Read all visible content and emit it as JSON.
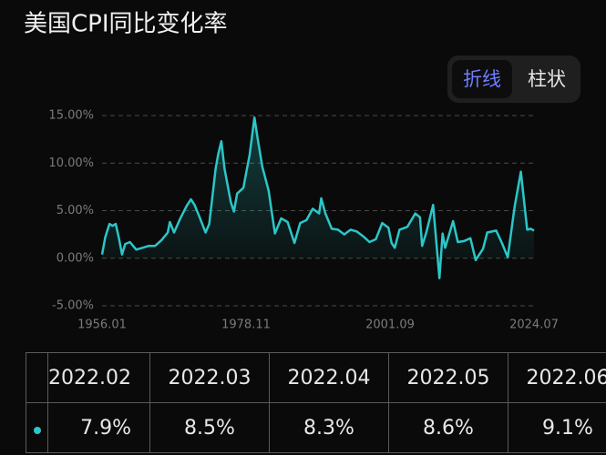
{
  "chart_data": {
    "type": "line",
    "title": "美国CPI同比变化率",
    "toggle": [
      "折线",
      "柱状"
    ],
    "active_toggle": 0,
    "x": [
      "1956.01",
      "1956.07",
      "1957.03",
      "1957.09",
      "1958.03",
      "1958.09",
      "1959.03",
      "1959.09",
      "1960.06",
      "1961.06",
      "1962.06",
      "1963.06",
      "1964.06",
      "1965.06",
      "1966.06",
      "1966.10",
      "1967.06",
      "1968.06",
      "1969.06",
      "1970.02",
      "1970.09",
      "1971.06",
      "1972.06",
      "1973.01",
      "1973.06",
      "1974.01",
      "1974.06",
      "1974.12",
      "1975.06",
      "1976.06",
      "1976.12",
      "1977.06",
      "1978.06",
      "1978.11",
      "1979.06",
      "1980.03",
      "1980.09",
      "1981.06",
      "1982.06",
      "1983.06",
      "1984.06",
      "1985.06",
      "1986.07",
      "1987.06",
      "1988.06",
      "1989.06",
      "1990.06",
      "1990.10",
      "1991.06",
      "1992.06",
      "1993.06",
      "1994.06",
      "1995.06",
      "1996.06",
      "1997.06",
      "1998.06",
      "1999.06",
      "2000.06",
      "2001.06",
      "2001.12",
      "2002.06",
      "2003.03",
      "2004.06",
      "2005.09",
      "2006.06",
      "2006.10",
      "2007.06",
      "2008.07",
      "2009.07",
      "2010.01",
      "2010.06",
      "2011.09",
      "2012.06",
      "2013.06",
      "2014.06",
      "2015.04",
      "2016.06",
      "2017.02",
      "2018.07",
      "2019.06",
      "2020.05",
      "2021.06",
      "2022.06",
      "2023.06",
      "2024.01",
      "2024.07"
    ],
    "series": [
      {
        "color": "#2cc6c8",
        "values": [
          0.4,
          2.2,
          3.6,
          3.4,
          3.6,
          2.1,
          0.4,
          1.5,
          1.7,
          0.9,
          1.1,
          1.3,
          1.3,
          1.9,
          2.7,
          3.8,
          2.7,
          4.2,
          5.5,
          6.2,
          5.6,
          4.4,
          2.7,
          3.6,
          6.0,
          9.4,
          10.9,
          12.3,
          9.4,
          5.9,
          4.9,
          6.8,
          7.4,
          8.9,
          10.9,
          14.8,
          12.6,
          9.6,
          7.1,
          2.6,
          4.2,
          3.8,
          1.6,
          3.7,
          4.0,
          5.2,
          4.7,
          6.3,
          4.7,
          3.1,
          3.0,
          2.5,
          3.0,
          2.8,
          2.3,
          1.7,
          2.0,
          3.7,
          3.2,
          1.6,
          1.1,
          3.0,
          3.3,
          4.7,
          4.3,
          1.3,
          2.7,
          5.6,
          -2.1,
          2.6,
          1.1,
          3.9,
          1.7,
          1.8,
          2.1,
          -0.2,
          1.0,
          2.7,
          2.9,
          1.6,
          0.1,
          5.4,
          9.1,
          3.0,
          3.1,
          2.9
        ]
      }
    ],
    "xticks": [
      "1956.01",
      "1978.11",
      "2001.09",
      "2024.07"
    ],
    "ylim": [
      -5,
      15
    ],
    "yticks": [
      {
        "value": 15,
        "label": "15.00%"
      },
      {
        "value": 10,
        "label": "10.00%"
      },
      {
        "value": 5,
        "label": "5.00%"
      },
      {
        "value": 0,
        "label": "0.00%"
      },
      {
        "value": -5,
        "label": "-5.00%"
      }
    ],
    "grid": true
  },
  "table": {
    "columns": [
      "2022.02",
      "2022.03",
      "2022.04",
      "2022.05",
      "2022.06"
    ],
    "values": [
      "7.9%",
      "8.5%",
      "8.3%",
      "8.6%",
      "9.1%"
    ]
  }
}
